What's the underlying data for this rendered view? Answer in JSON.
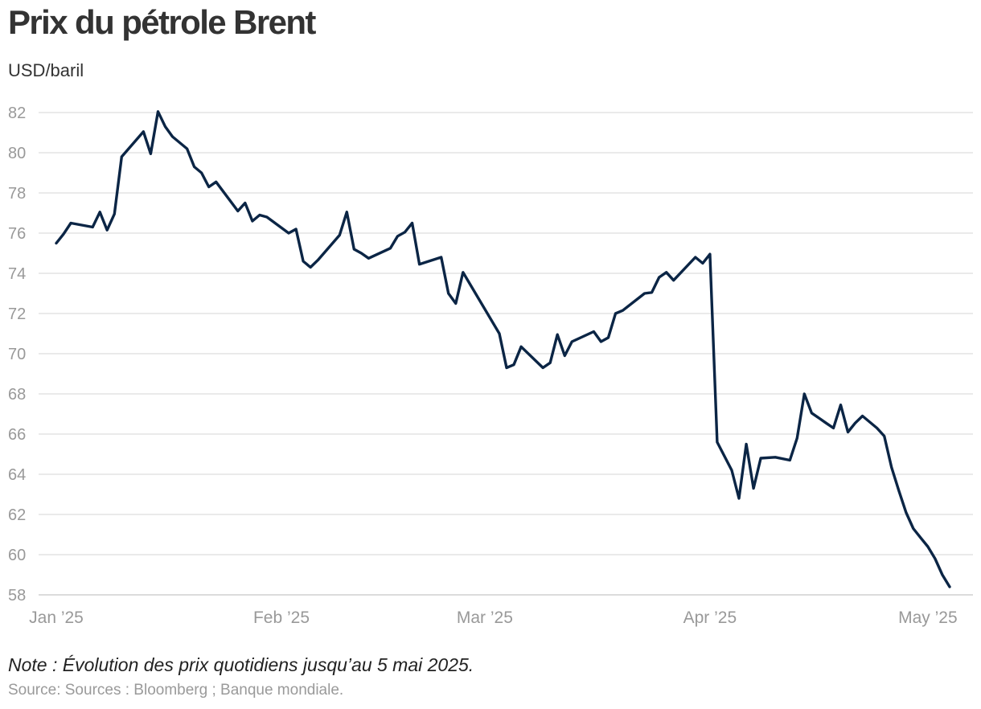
{
  "chart_data": {
    "type": "line",
    "title": "Prix du pétrole Brent",
    "ylabel": "USD/baril",
    "xlabel": "",
    "ylim": [
      58,
      82
    ],
    "yticks": [
      58,
      60,
      62,
      64,
      66,
      68,
      70,
      72,
      74,
      76,
      78,
      80,
      82
    ],
    "x_ticks": [
      {
        "label": "Jan ’25",
        "day": 0
      },
      {
        "label": "Feb ’25",
        "day": 31
      },
      {
        "label": "Mar ’25",
        "day": 59
      },
      {
        "label": "Apr ’25",
        "day": 90
      },
      {
        "label": "May ’25",
        "day": 120
      }
    ],
    "x_range_days": [
      0,
      124
    ],
    "grid": true,
    "series": [
      {
        "name": "Brent",
        "color": "#0b2545",
        "x_days": [
          0,
          1,
          2,
          5,
          6,
          7,
          8,
          9,
          12,
          13,
          14,
          15,
          16,
          18,
          19,
          20,
          21,
          22,
          25,
          26,
          27,
          28,
          29,
          32,
          33,
          34,
          35,
          36,
          39,
          40,
          41,
          42,
          43,
          46,
          47,
          48,
          49,
          50,
          53,
          54,
          55,
          56,
          61,
          62,
          63,
          64,
          67,
          68,
          69,
          70,
          71,
          74,
          75,
          76,
          77,
          78,
          81,
          82,
          83,
          84,
          85,
          88,
          89,
          90,
          91,
          93,
          94,
          95,
          96,
          97,
          99,
          101,
          102,
          103,
          104,
          105,
          106,
          107,
          108,
          109,
          110,
          111,
          112,
          113,
          114,
          115,
          116,
          117,
          118,
          119,
          120,
          121,
          122,
          123
        ],
        "values": [
          75.5,
          75.95,
          76.5,
          76.3,
          77.05,
          76.15,
          76.95,
          79.8,
          81.05,
          79.95,
          82.05,
          81.3,
          80.8,
          80.2,
          79.3,
          79.0,
          78.3,
          78.55,
          77.1,
          77.5,
          76.6,
          76.9,
          76.8,
          76.0,
          76.2,
          74.6,
          74.3,
          74.65,
          75.9,
          77.05,
          75.2,
          75.0,
          74.75,
          75.25,
          75.85,
          76.05,
          76.5,
          74.45,
          74.8,
          73.0,
          72.5,
          74.05,
          71.0,
          69.3,
          69.45,
          70.35,
          69.3,
          69.55,
          70.95,
          69.9,
          70.6,
          71.1,
          70.6,
          70.8,
          72.0,
          72.15,
          73.0,
          73.05,
          73.8,
          74.05,
          73.65,
          74.8,
          74.5,
          74.95,
          65.6,
          64.2,
          62.8,
          65.5,
          63.3,
          64.8,
          64.85,
          64.7,
          65.8,
          68.0,
          67.05,
          66.8,
          66.55,
          66.3,
          67.45,
          66.1,
          66.55,
          66.9,
          66.6,
          66.3,
          65.9,
          64.35,
          63.2,
          62.1,
          61.3,
          60.85,
          60.4,
          59.8,
          59.0,
          58.4
        ]
      }
    ],
    "note": "Note : Évolution des prix quotidiens jusqu’au 5 mai 2025.",
    "source": "Source: Sources : Bloomberg ; Banque mondiale."
  }
}
